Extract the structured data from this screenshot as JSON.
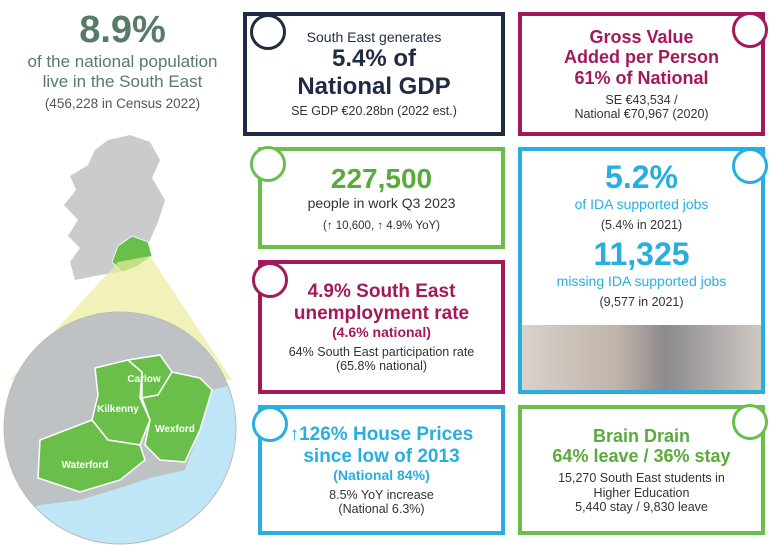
{
  "header": {
    "headline": "8.9%",
    "lines": [
      "of the national population",
      "live in the South East"
    ],
    "note": "(456,228 in Census 2022)"
  },
  "map": {
    "counties": [
      "Carlow",
      "Kilkenny",
      "Wexford",
      "Waterford"
    ]
  },
  "cards": [
    {
      "lines": [
        "South East generates",
        "5.4% of",
        "National GDP",
        "SE GDP €20.28bn (2022 est.)"
      ]
    },
    {
      "lines": [
        "Gross Value",
        "Added per Person",
        "61% of National",
        "SE €43,534 /",
        "National €70,967 (2020)"
      ]
    },
    {
      "lines": [
        "227,500",
        "people in work Q3 2023",
        "(↑ 10,600, ↑ 4.9% YoY)"
      ]
    },
    {
      "lines": [
        "4.9% South East",
        "unemployment rate",
        "(4.6% national)",
        "64% South East participation rate",
        "(65.8% national)"
      ]
    },
    {
      "lines": [
        "5.2%",
        "of IDA supported jobs",
        "(5.4% in 2021)",
        "11,325",
        "missing IDA supported jobs",
        "(9,577 in 2021)"
      ]
    },
    {
      "lines": [
        "↑126% House Prices",
        "since low of 2013",
        "(National 84%)",
        "8.5% YoY increase",
        "(National 6.3%)"
      ]
    },
    {
      "lines": [
        "Brain Drain",
        "64% leave / 36% stay",
        "15,270 South East students in",
        "Higher Education",
        "5,440 stay / 9,830 leave"
      ]
    }
  ]
}
